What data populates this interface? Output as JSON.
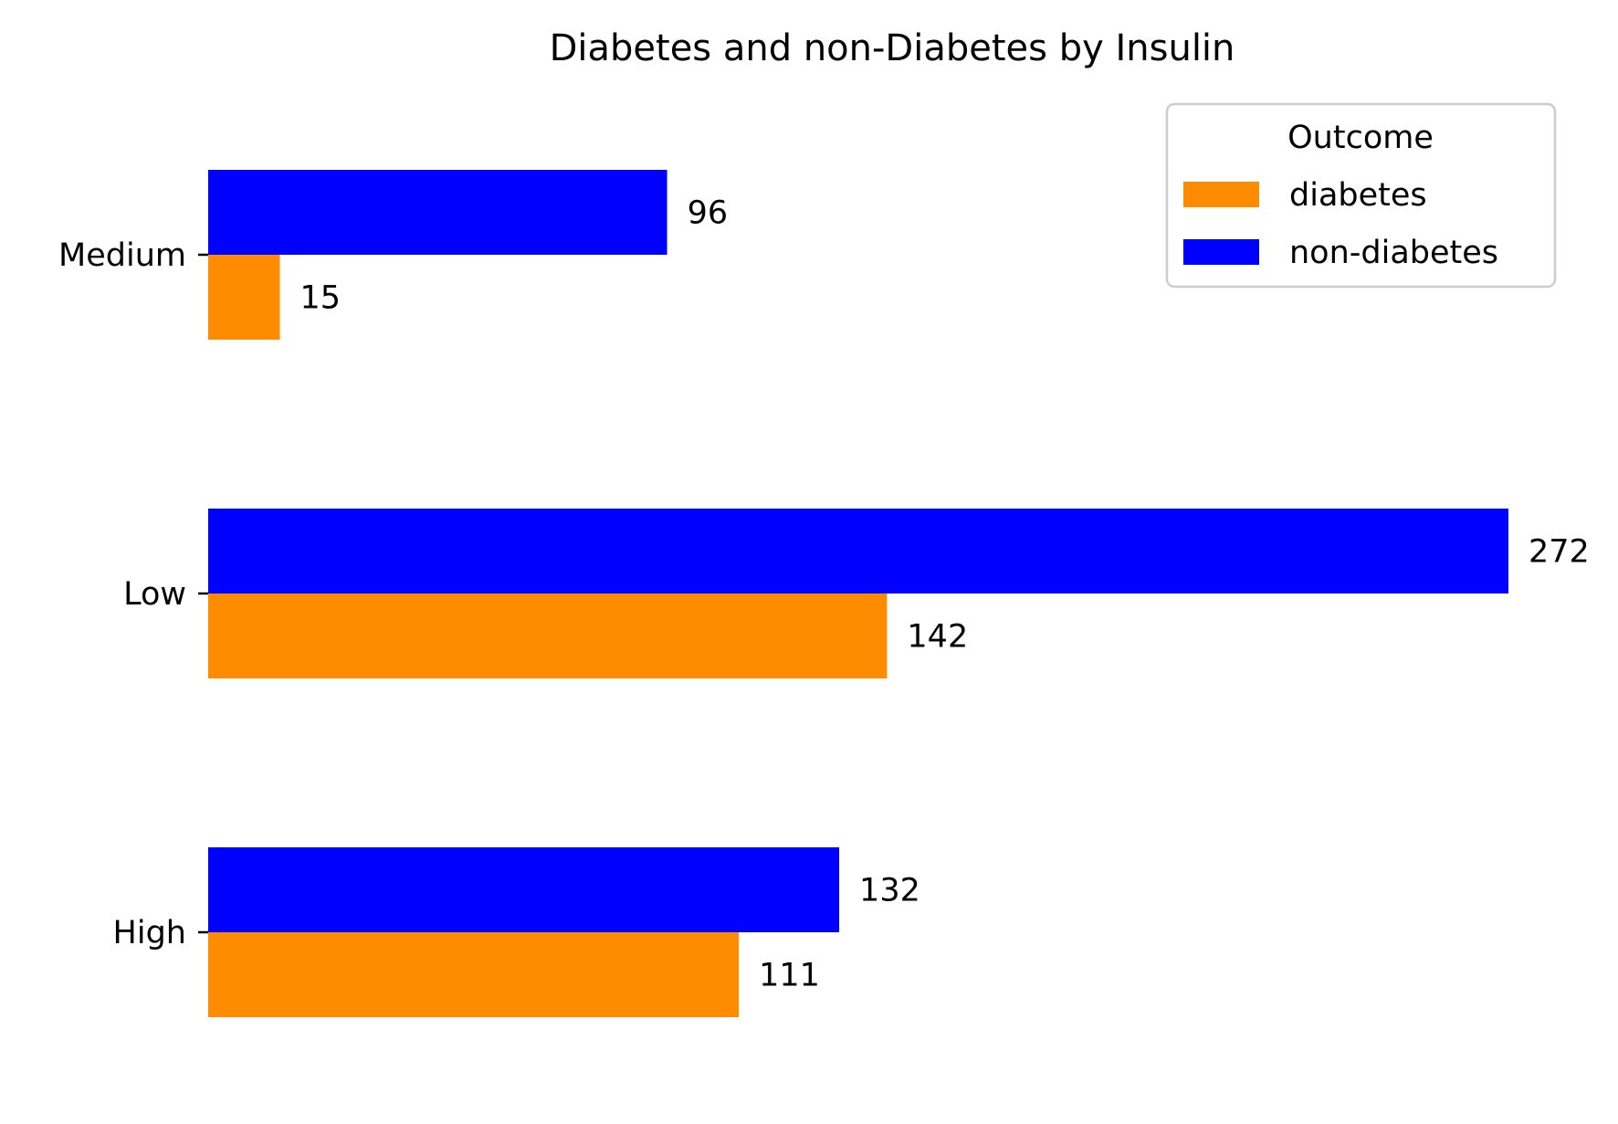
{
  "chart_data": {
    "type": "bar",
    "orientation": "horizontal",
    "title": "Diabetes and non-Diabetes by Insulin",
    "xlabel": "",
    "ylabel": "",
    "categories": [
      "Medium",
      "Low",
      "High"
    ],
    "series": [
      {
        "name": "non-diabetes",
        "color": "#0000ff",
        "values": [
          96,
          272,
          132
        ]
      },
      {
        "name": "diabetes",
        "color": "#ff8c00",
        "values": [
          15,
          142,
          111
        ]
      }
    ],
    "xlim": [
      0,
      272
    ],
    "grid": false,
    "legend": {
      "title": "Outcome",
      "position": "top-right",
      "entries": [
        "diabetes",
        "non-diabetes"
      ]
    }
  }
}
